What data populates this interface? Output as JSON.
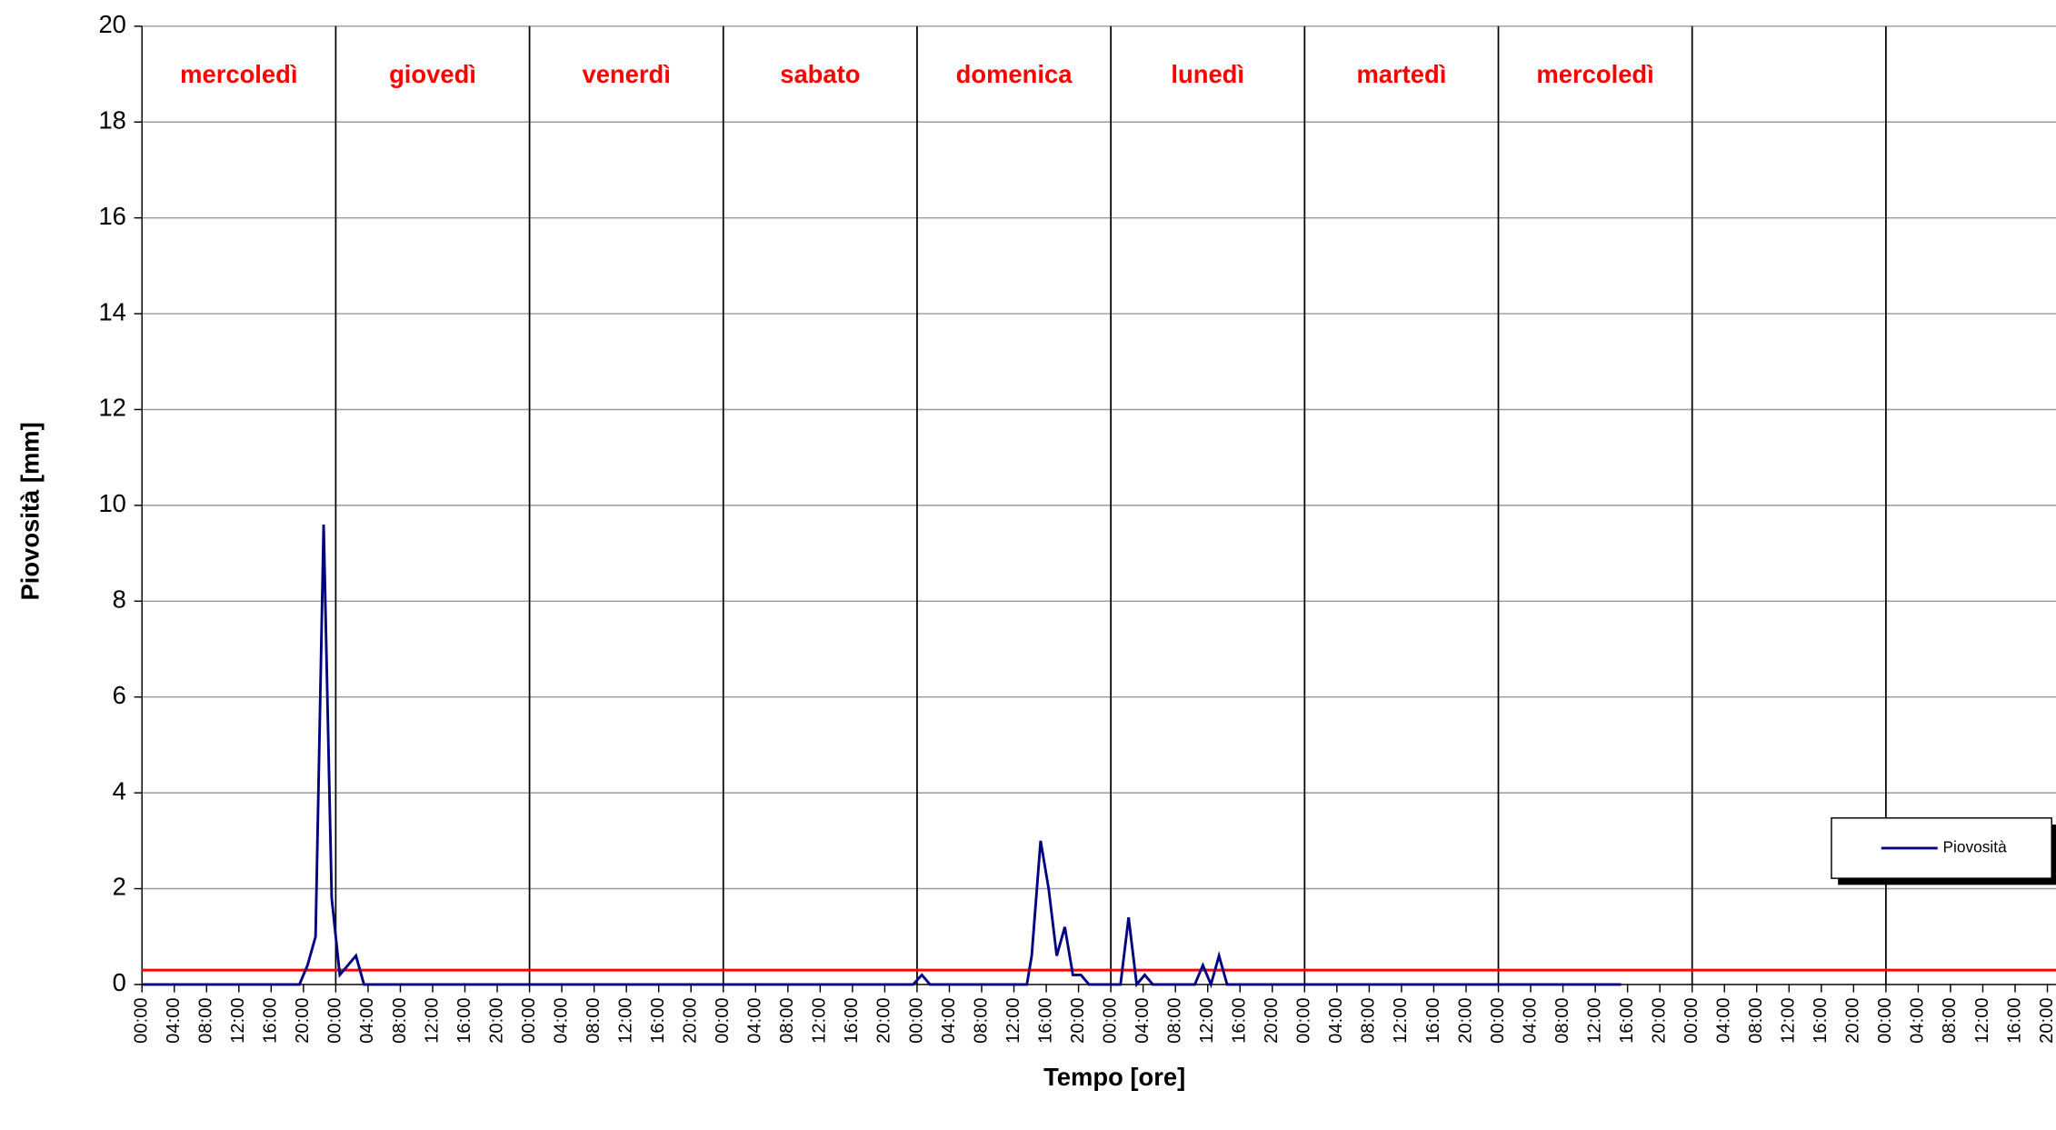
{
  "chart_data": {
    "type": "line",
    "y_label": "Piovosità [mm]",
    "x_label": "Tempo [ore]",
    "day_labels": [
      "mercoledì",
      "giovedì",
      "venerdì",
      "sabato",
      "domenica",
      "lunedì",
      "martedì",
      "mercoledì"
    ],
    "day_label_color": "#ff0000",
    "series": [
      {
        "name": "Piovosità",
        "color": "#000080",
        "x": [
          0,
          19.5,
          20.5,
          21.5,
          22.5,
          23.5,
          24.5,
          26.5,
          27.5,
          95.5,
          96.6,
          97.6,
          109.6,
          110.2,
          111.3,
          112.3,
          113.3,
          114.3,
          115.3,
          116.3,
          117.3,
          121.2,
          122.2,
          123.2,
          124.2,
          125.2,
          130.4,
          131.4,
          132.4,
          133.4,
          134.4,
          183.2
        ],
        "values": [
          0,
          0,
          0.4,
          1,
          9.6,
          1.8,
          0.2,
          0.6,
          0,
          0,
          0.2,
          0,
          0,
          0.6,
          3,
          2,
          0.6,
          1.2,
          0.2,
          0.2,
          0,
          0,
          1.4,
          0,
          0.2,
          0,
          0,
          0.4,
          0,
          0.6,
          0,
          0
        ]
      }
    ],
    "threshold": 0.3,
    "threshold_color": "#ff0000",
    "day_lines": [
      24,
      48,
      72,
      96,
      120,
      144,
      168,
      192,
      216
    ],
    "xlim": [
      0,
      240
    ],
    "ylim": [
      0,
      20
    ],
    "yticks": [
      0,
      2,
      4,
      6,
      8,
      10,
      12,
      14,
      16,
      18,
      20
    ],
    "xticks": [
      {
        "value": 0,
        "label": "00:00"
      },
      {
        "value": 4,
        "label": "04:00"
      },
      {
        "value": 8,
        "label": "08:00"
      },
      {
        "value": 12,
        "label": "12:00"
      },
      {
        "value": 16,
        "label": "16:00"
      },
      {
        "value": 20,
        "label": "20:00"
      },
      {
        "value": 24,
        "label": "00:00"
      },
      {
        "value": 28,
        "label": "04:00"
      },
      {
        "value": 32,
        "label": "08:00"
      },
      {
        "value": 36,
        "label": "12:00"
      },
      {
        "value": 40,
        "label": "16:00"
      },
      {
        "value": 44,
        "label": "20:00"
      },
      {
        "value": 48,
        "label": "00:00"
      },
      {
        "value": 52,
        "label": "04:00"
      },
      {
        "value": 56,
        "label": "08:00"
      },
      {
        "value": 60,
        "label": "12:00"
      },
      {
        "value": 64,
        "label": "16:00"
      },
      {
        "value": 68,
        "label": "20:00"
      },
      {
        "value": 72,
        "label": "00:00"
      },
      {
        "value": 76,
        "label": "04:00"
      },
      {
        "value": 80,
        "label": "08:00"
      },
      {
        "value": 84,
        "label": "12:00"
      },
      {
        "value": 88,
        "label": "16:00"
      },
      {
        "value": 92,
        "label": "20:00"
      },
      {
        "value": 96,
        "label": "00:00"
      },
      {
        "value": 100,
        "label": "04:00"
      },
      {
        "value": 104,
        "label": "08:00"
      },
      {
        "value": 108,
        "label": "12:00"
      },
      {
        "value": 112,
        "label": "16:00"
      },
      {
        "value": 116,
        "label": "20:00"
      },
      {
        "value": 120,
        "label": "00:00"
      },
      {
        "value": 124,
        "label": "04:00"
      },
      {
        "value": 128,
        "label": "08:00"
      },
      {
        "value": 132,
        "label": "12:00"
      },
      {
        "value": 136,
        "label": "16:00"
      },
      {
        "value": 140,
        "label": "20:00"
      },
      {
        "value": 144,
        "label": "00:00"
      },
      {
        "value": 148,
        "label": "04:00"
      },
      {
        "value": 152,
        "label": "08:00"
      },
      {
        "value": 156,
        "label": "12:00"
      },
      {
        "value": 160,
        "label": "16:00"
      },
      {
        "value": 164,
        "label": "20:00"
      },
      {
        "value": 168,
        "label": "00:00"
      },
      {
        "value": 172,
        "label": "04:00"
      },
      {
        "value": 176,
        "label": "08:00"
      },
      {
        "value": 180,
        "label": "12:00"
      },
      {
        "value": 184,
        "label": "16:00"
      },
      {
        "value": 188,
        "label": "20:00"
      },
      {
        "value": 192,
        "label": "00:00"
      },
      {
        "value": 196,
        "label": "04:00"
      },
      {
        "value": 200,
        "label": "08:00"
      },
      {
        "value": 204,
        "label": "12:00"
      },
      {
        "value": 208,
        "label": "16:00"
      },
      {
        "value": 212,
        "label": "20:00"
      },
      {
        "value": 216,
        "label": "00:00"
      },
      {
        "value": 220,
        "label": "04:00"
      },
      {
        "value": 224,
        "label": "08:00"
      },
      {
        "value": 228,
        "label": "12:00"
      },
      {
        "value": 232,
        "label": "16:00"
      },
      {
        "value": 236,
        "label": "20:00"
      }
    ],
    "grid": true,
    "legend": "right"
  }
}
